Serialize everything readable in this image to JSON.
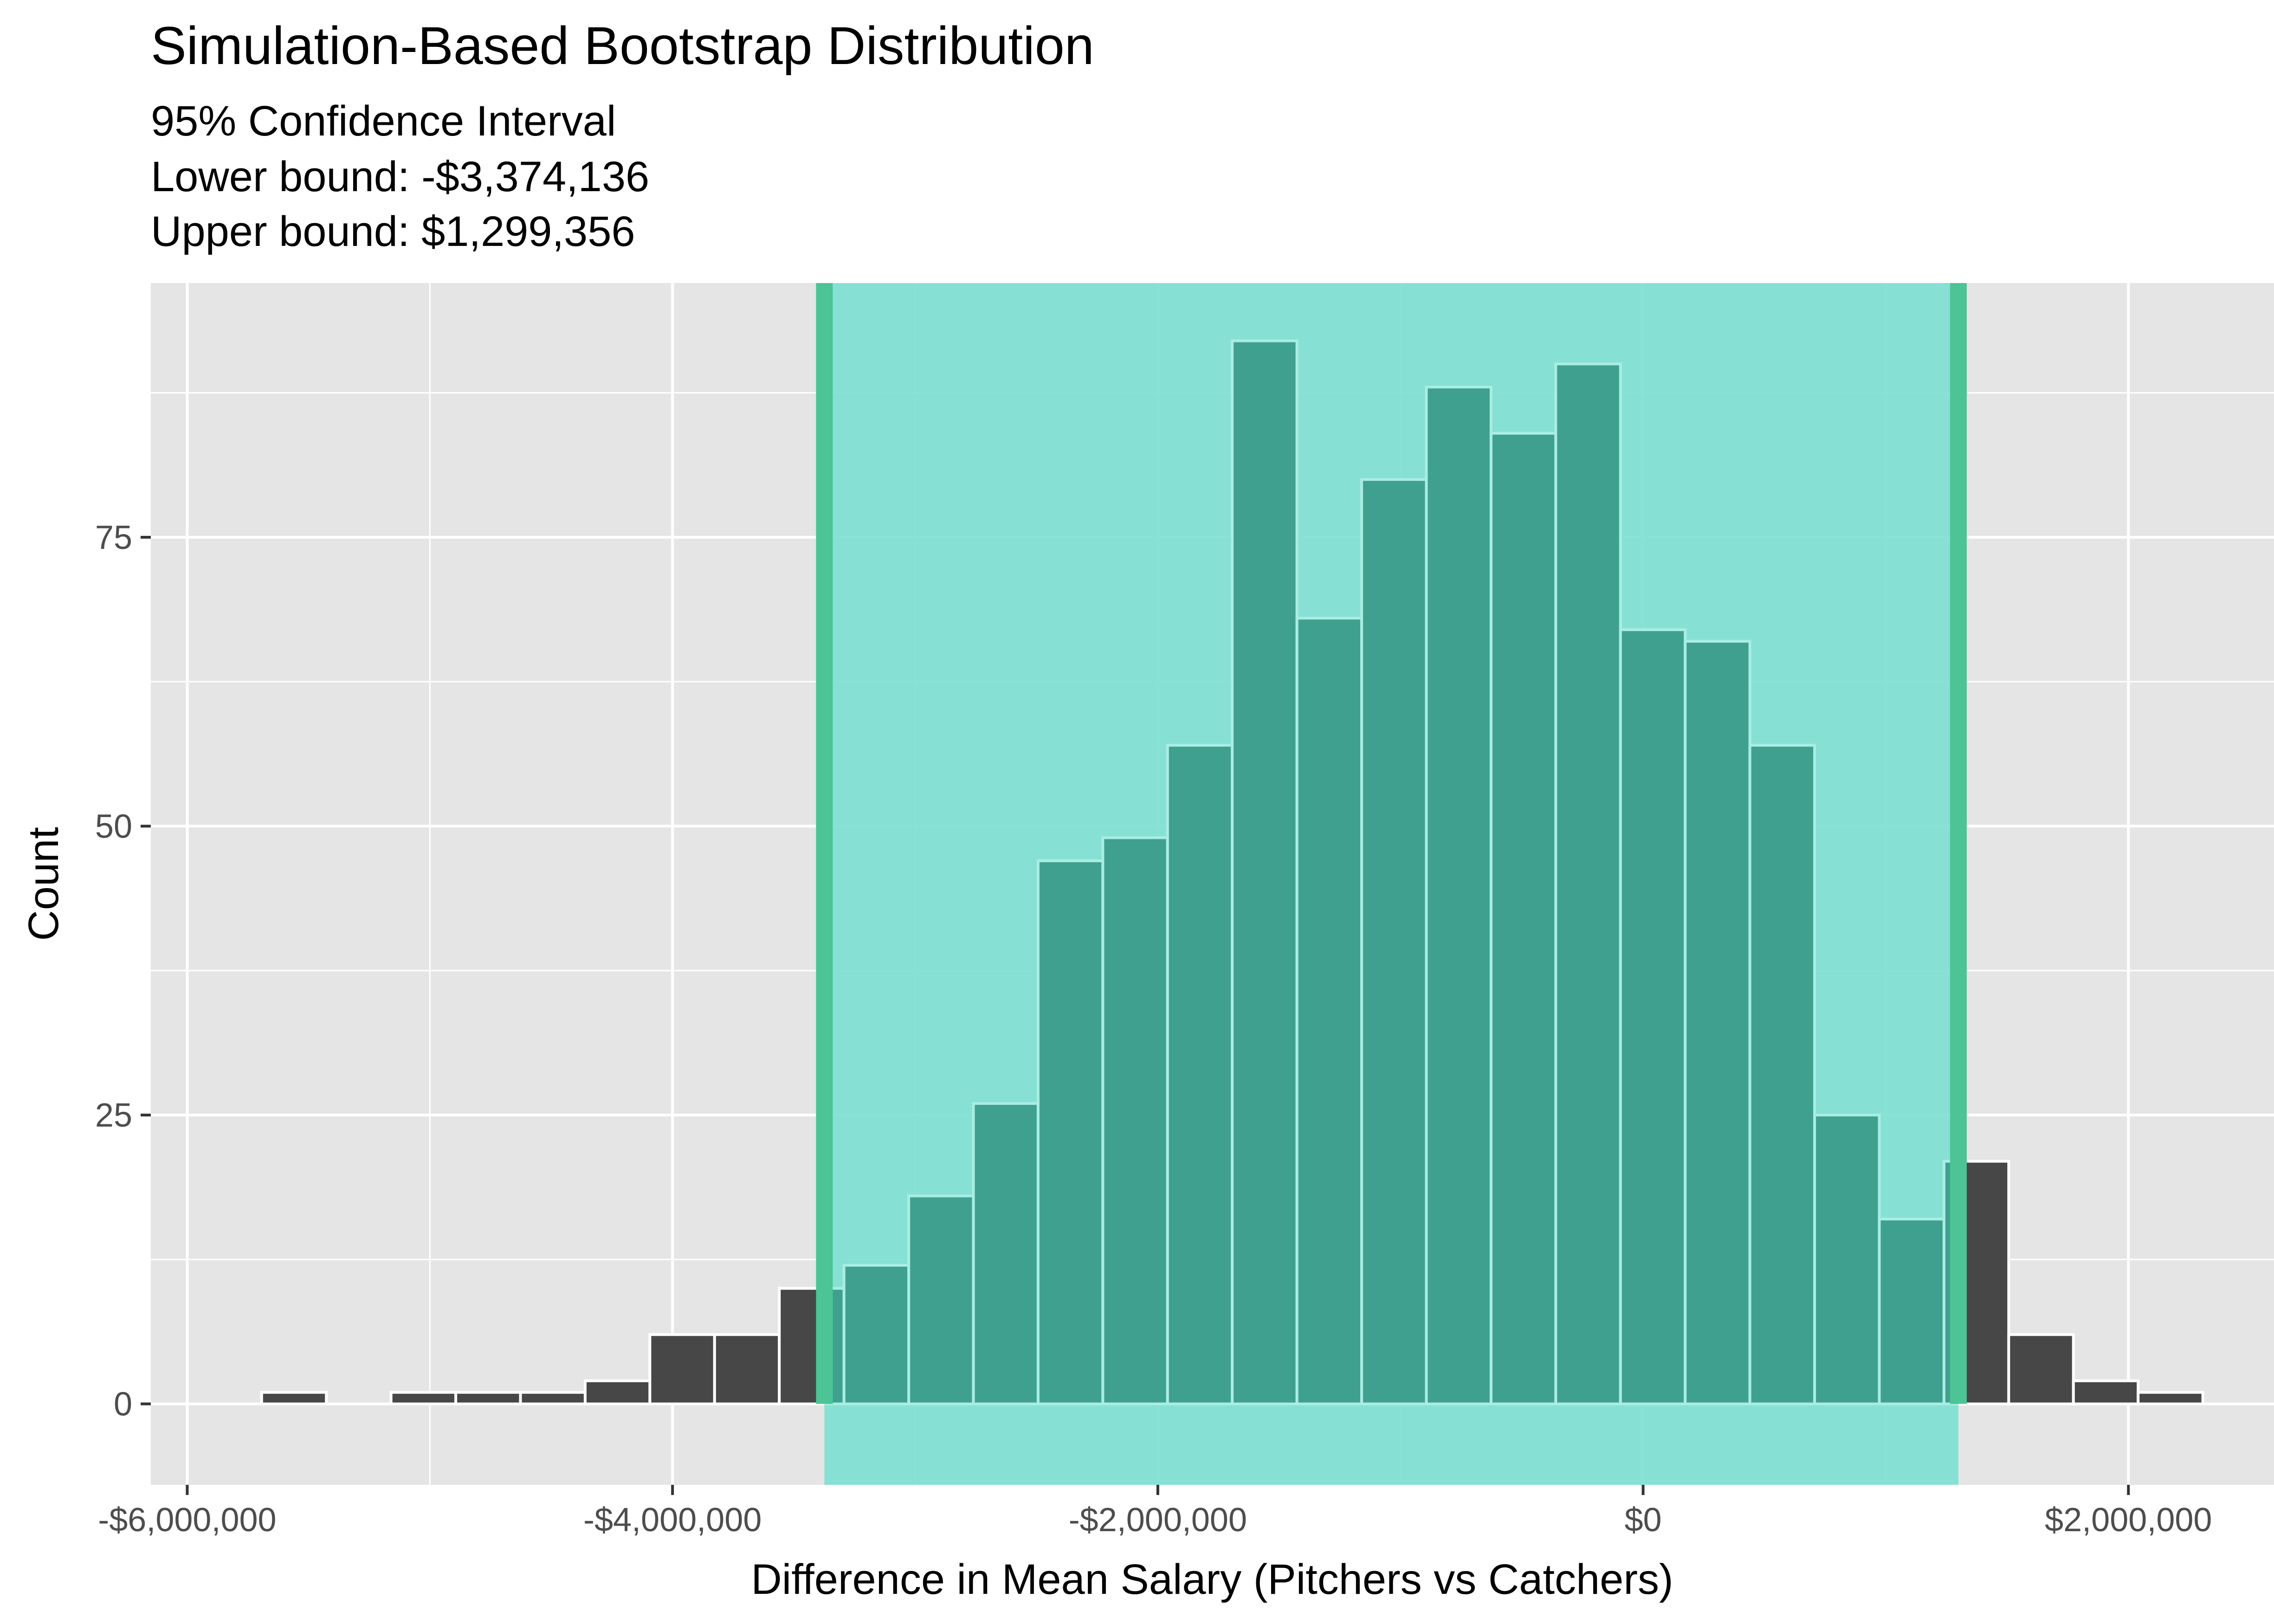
{
  "chart_data": {
    "type": "bar",
    "title": "Simulation-Based Bootstrap Distribution",
    "subtitle_lines": [
      "95% Confidence Interval",
      "Lower bound: -$3,374,136",
      "Upper bound: $1,299,356"
    ],
    "xlabel": "Difference in Mean Salary (Pitchers vs Catchers)",
    "ylabel": "Count",
    "xlim": [
      -6150000,
      2600000
    ],
    "ylim": [
      -7,
      97
    ],
    "grid": true,
    "x_ticks": [
      {
        "value": -6000000,
        "label": "-$6,000,000"
      },
      {
        "value": -4000000,
        "label": "-$4,000,000"
      },
      {
        "value": -2000000,
        "label": "-$2,000,000"
      },
      {
        "value": 0,
        "label": "$0"
      },
      {
        "value": 2000000,
        "label": "$2,000,000"
      }
    ],
    "y_ticks": [
      {
        "value": 0,
        "label": "0"
      },
      {
        "value": 25,
        "label": "25"
      },
      {
        "value": 50,
        "label": "50"
      },
      {
        "value": 75,
        "label": "75"
      }
    ],
    "bin_width": 266667,
    "bin_centers": [
      -5560000,
      -5293333,
      -5026667,
      -4760000,
      -4493333,
      -4226667,
      -3960000,
      -3693333,
      -3426667,
      -3160000,
      -2893333,
      -2626667,
      -2360000,
      -2093333,
      -1826667,
      -1560000,
      -1293333,
      -1026667,
      -760000,
      -493333,
      -226667,
      40000,
      306667,
      573333,
      840000,
      1106667,
      1373333,
      1640000,
      1906667,
      2173333
    ],
    "values": [
      1,
      0,
      1,
      1,
      1,
      2,
      6,
      6,
      10,
      12,
      18,
      26,
      47,
      49,
      57,
      92,
      68,
      80,
      88,
      84,
      90,
      67,
      66,
      57,
      25,
      16,
      21,
      6,
      2,
      1
    ],
    "ci": {
      "lower": -3374136,
      "upper": 1299356
    },
    "colors": {
      "panel": "#e5e5e5",
      "grid": "#ffffff",
      "bar": "#474747",
      "bar_outline": "#ffffff",
      "ci_fill": "#7fe0d2",
      "ci_bar": "#40a090",
      "ci_bar_outline": "#a8ede3",
      "ci_line": "#4cc496"
    }
  }
}
